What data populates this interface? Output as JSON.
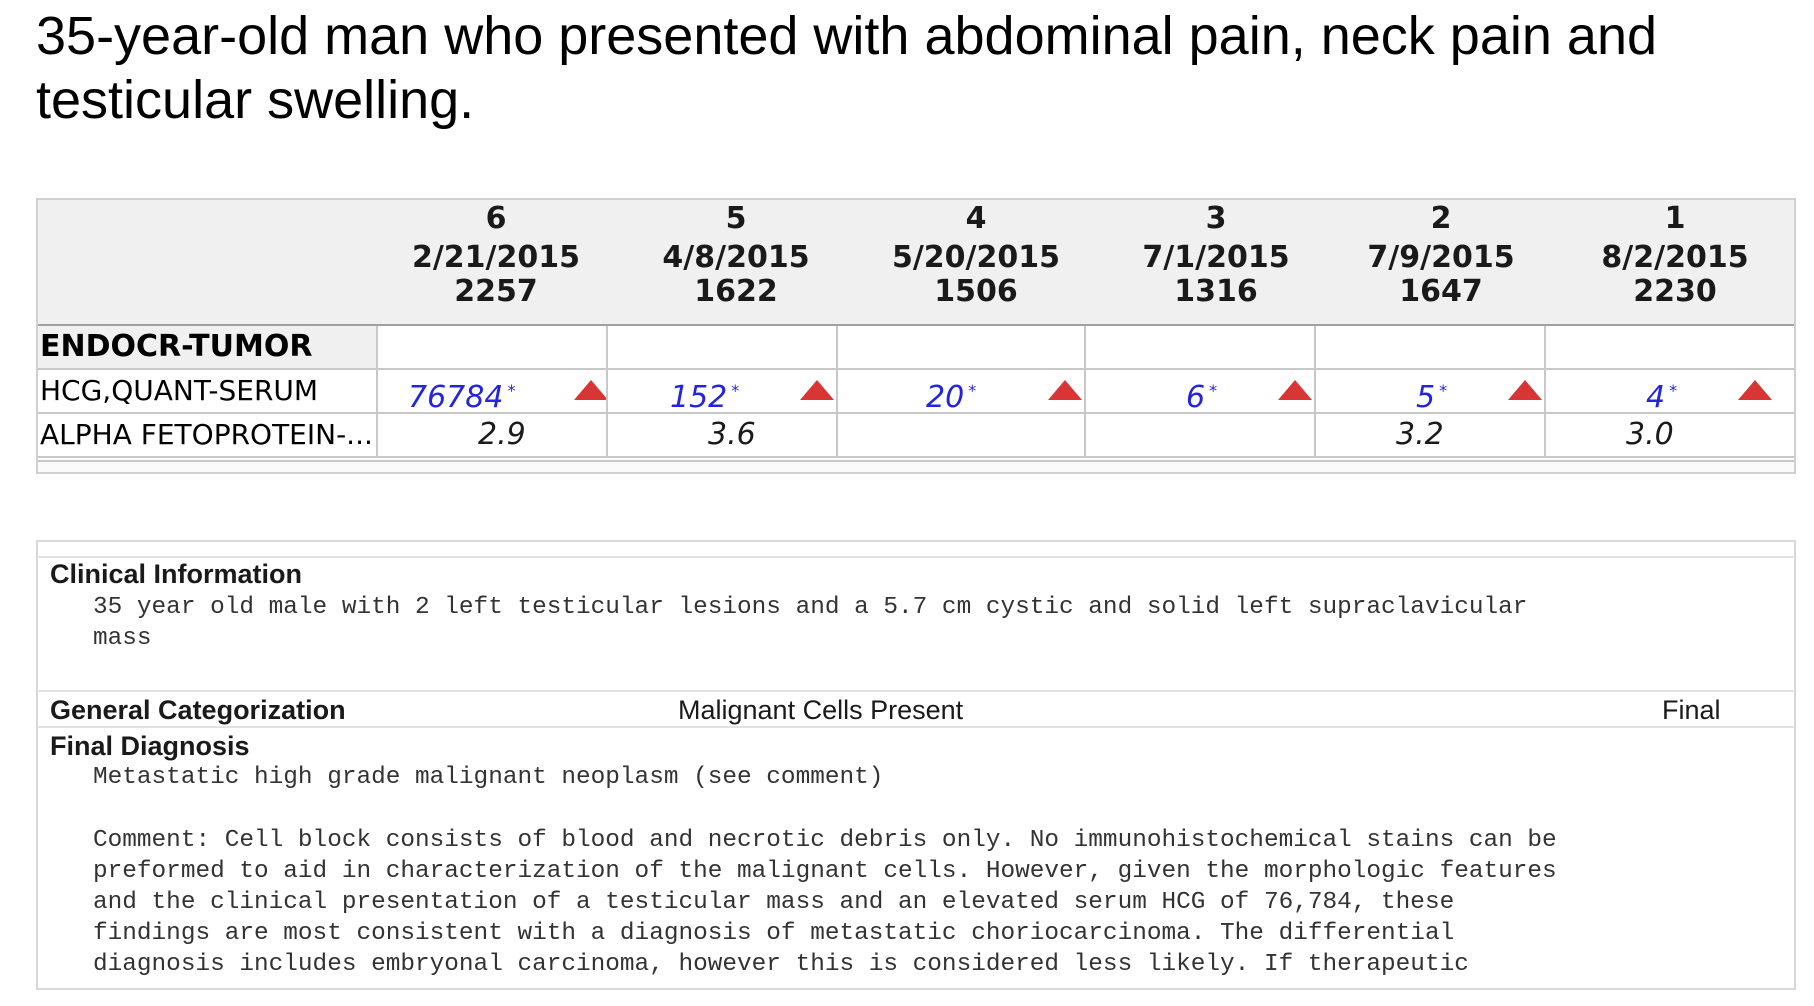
{
  "title": "35-year-old man who presented with abdominal pain, neck pain and testicular swelling.",
  "lab": {
    "columns": [
      {
        "num": "6",
        "date": "2/21/2015",
        "time": "2257"
      },
      {
        "num": "5",
        "date": "4/8/2015",
        "time": "1622"
      },
      {
        "num": "4",
        "date": "5/20/2015",
        "time": "1506"
      },
      {
        "num": "3",
        "date": "7/1/2015",
        "time": "1316"
      },
      {
        "num": "2",
        "date": "7/9/2015",
        "time": "1647"
      },
      {
        "num": "1",
        "date": "8/2/2015",
        "time": "2230"
      }
    ],
    "section_label": "ENDOCR-TUMOR",
    "flag_mark": "*",
    "rows": [
      {
        "label": "HCG,QUANT-SERUM",
        "values": [
          "76784",
          "152",
          "20",
          "6",
          "5",
          "4"
        ],
        "flags": [
          "high",
          "high",
          "high",
          "high",
          "high",
          "high"
        ]
      },
      {
        "label": "ALPHA FETOPROTEIN-...",
        "values": [
          "2.9",
          "3.6",
          "",
          "",
          "3.2",
          "3.0"
        ],
        "flags": [
          "",
          "",
          "",
          "",
          "",
          ""
        ]
      }
    ],
    "colors": {
      "high_value": "#2424e0",
      "high_arrow": "#d93535"
    }
  },
  "report": {
    "clinical_heading": "Clinical Information",
    "clinical_lines": [
      "35 year old male with 2 left testicular lesions and a 5.7 cm cystic and solid left supraclavicular",
      "mass"
    ],
    "categorization_heading": "General Categorization",
    "categorization_value": "Malignant Cells Present",
    "categorization_status": "Final",
    "diagnosis_heading": "Final Diagnosis",
    "diagnosis_line": "Metastatic high grade malignant neoplasm (see comment)",
    "comment_lines": [
      "Comment: Cell block consists of blood and necrotic debris only. No immunohistochemical stains can be",
      "preformed to aid in characterization of the malignant cells. However, given the morphologic features",
      "and the clinical presentation of a testicular mass and an elevated serum HCG of 76,784, these",
      "findings are most consistent with a diagnosis of metastatic choriocarcinoma. The differential",
      "diagnosis includes embryonal carcinoma, however this is considered less likely. If therapeutic"
    ]
  }
}
